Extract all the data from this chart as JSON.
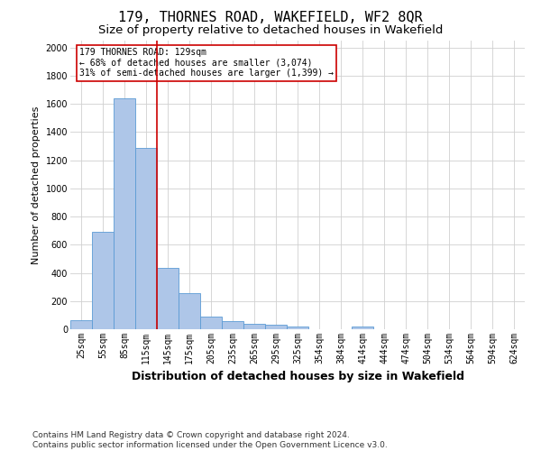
{
  "title": "179, THORNES ROAD, WAKEFIELD, WF2 8QR",
  "subtitle": "Size of property relative to detached houses in Wakefield",
  "xlabel": "Distribution of detached houses by size in Wakefield",
  "ylabel": "Number of detached properties",
  "footer_line1": "Contains HM Land Registry data © Crown copyright and database right 2024.",
  "footer_line2": "Contains public sector information licensed under the Open Government Licence v3.0.",
  "categories": [
    "25sqm",
    "55sqm",
    "85sqm",
    "115sqm",
    "145sqm",
    "175sqm",
    "205sqm",
    "235sqm",
    "265sqm",
    "295sqm",
    "325sqm",
    "354sqm",
    "384sqm",
    "414sqm",
    "444sqm",
    "474sqm",
    "504sqm",
    "534sqm",
    "564sqm",
    "594sqm",
    "624sqm"
  ],
  "values": [
    65,
    690,
    1640,
    1290,
    435,
    255,
    90,
    55,
    40,
    30,
    20,
    0,
    0,
    20,
    0,
    0,
    0,
    0,
    0,
    0,
    0
  ],
  "bar_color": "#aec6e8",
  "bar_edge_color": "#5b9bd5",
  "grid_color": "#d0d0d0",
  "vline_color": "#cc0000",
  "vline_pos": 3.5,
  "annotation_text": "179 THORNES ROAD: 129sqm\n← 68% of detached houses are smaller (3,074)\n31% of semi-detached houses are larger (1,399) →",
  "annotation_box_color": "#cc0000",
  "ylim": [
    0,
    2050
  ],
  "yticks": [
    0,
    200,
    400,
    600,
    800,
    1000,
    1200,
    1400,
    1600,
    1800,
    2000
  ],
  "title_fontsize": 11,
  "subtitle_fontsize": 9.5,
  "xlabel_fontsize": 9,
  "ylabel_fontsize": 8,
  "tick_fontsize": 7,
  "footer_fontsize": 6.5,
  "annotation_fontsize": 7,
  "background_color": "#ffffff"
}
